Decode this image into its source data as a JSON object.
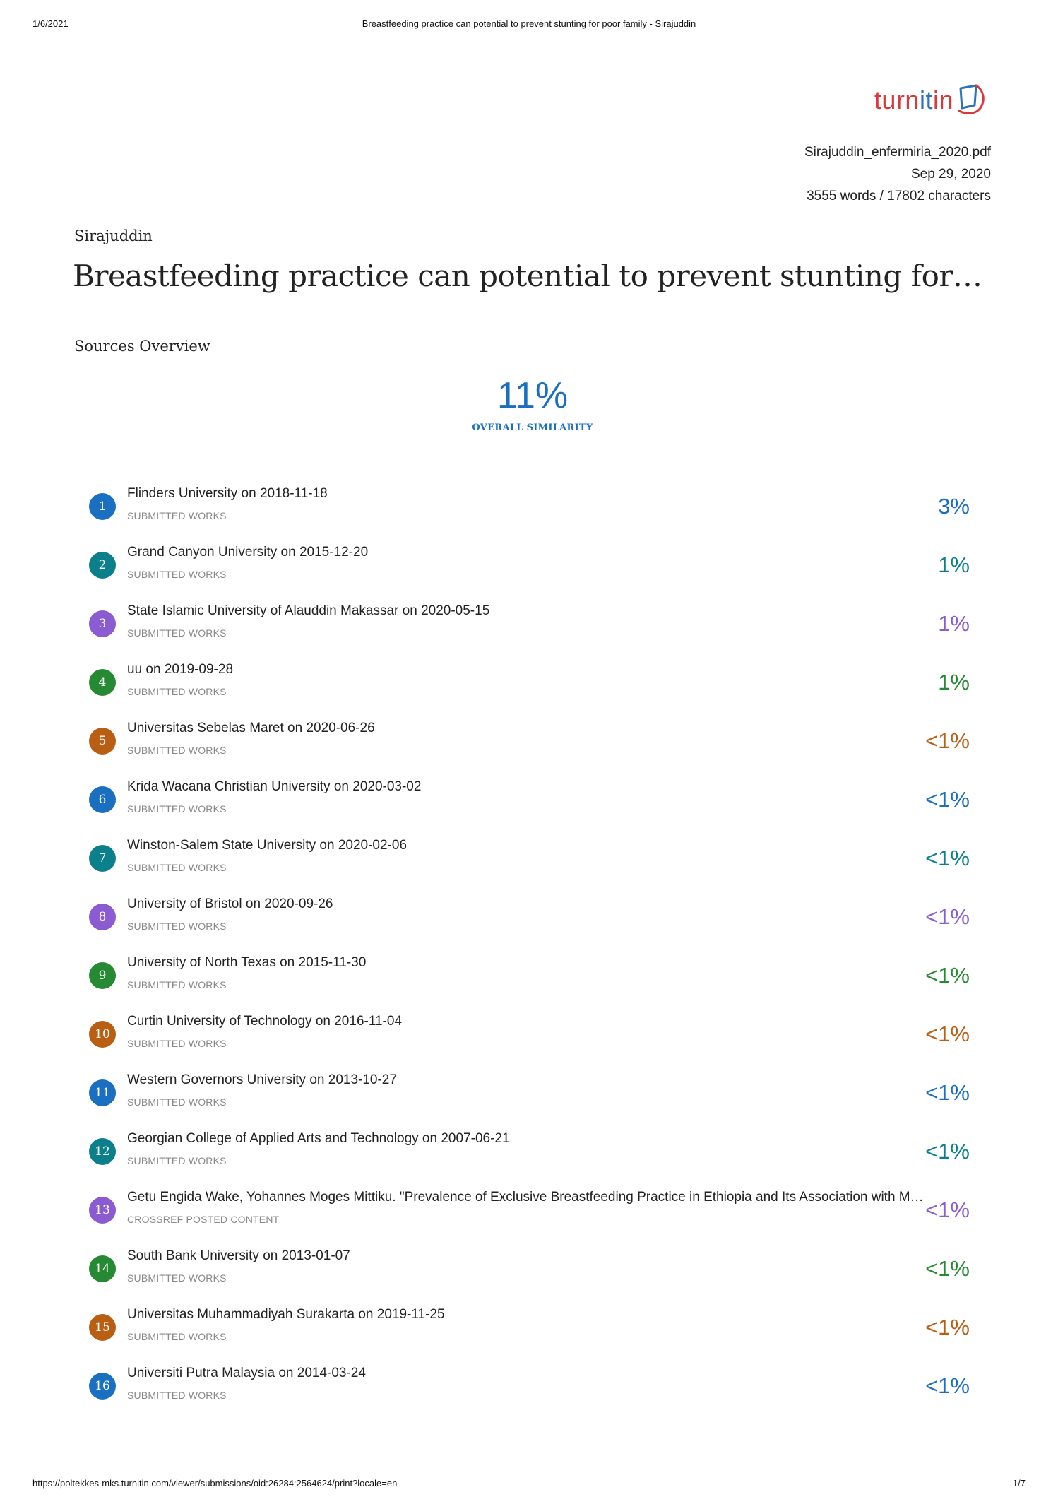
{
  "print_header": {
    "date": "1/6/2021",
    "title": "Breastfeeding practice can potential to prevent stunting for poor family - Sirajuddin"
  },
  "logo": {
    "part1": "turn",
    "part2": "it",
    "part3": "in"
  },
  "meta": {
    "filename": "Sirajuddin_enfermiria_2020.pdf",
    "date": "Sep 29, 2020",
    "counts": "3555 words / 17802 characters"
  },
  "author": "Sirajuddin",
  "doc_title": "Breastfeeding practice can potential to prevent stunting for poor family",
  "section_title": "Sources Overview",
  "overall": {
    "percent": "11%",
    "label": "OVERALL SIMILARITY"
  },
  "sources": [
    {
      "num": "1",
      "title": "Flinders University on 2018-11-18",
      "type": "SUBMITTED WORKS",
      "percent": "3%",
      "color": "#1b6fc1"
    },
    {
      "num": "2",
      "title": "Grand Canyon University on 2015-12-20",
      "type": "SUBMITTED WORKS",
      "percent": "1%",
      "color": "#0c7f8c"
    },
    {
      "num": "3",
      "title": "State Islamic University of Alauddin Makassar on 2020-05-15",
      "type": "SUBMITTED WORKS",
      "percent": "1%",
      "color": "#8a5bd1"
    },
    {
      "num": "4",
      "title": "uu on 2019-09-28",
      "type": "SUBMITTED WORKS",
      "percent": "1%",
      "color": "#258a32"
    },
    {
      "num": "5",
      "title": "Universitas Sebelas Maret on 2020-06-26",
      "type": "SUBMITTED WORKS",
      "percent": "<1%",
      "color": "#b95f14"
    },
    {
      "num": "6",
      "title": "Krida Wacana Christian University on 2020-03-02",
      "type": "SUBMITTED WORKS",
      "percent": "<1%",
      "color": "#1b6fc1"
    },
    {
      "num": "7",
      "title": "Winston-Salem State University on 2020-02-06",
      "type": "SUBMITTED WORKS",
      "percent": "<1%",
      "color": "#0c7f8c"
    },
    {
      "num": "8",
      "title": "University of Bristol on 2020-09-26",
      "type": "SUBMITTED WORKS",
      "percent": "<1%",
      "color": "#8a5bd1"
    },
    {
      "num": "9",
      "title": "University of North Texas on 2015-11-30",
      "type": "SUBMITTED WORKS",
      "percent": "<1%",
      "color": "#258a32"
    },
    {
      "num": "10",
      "title": "Curtin University of Technology on 2016-11-04",
      "type": "SUBMITTED WORKS",
      "percent": "<1%",
      "color": "#b95f14"
    },
    {
      "num": "11",
      "title": "Western Governors University on 2013-10-27",
      "type": "SUBMITTED WORKS",
      "percent": "<1%",
      "color": "#1b6fc1"
    },
    {
      "num": "12",
      "title": "Georgian College of Applied Arts and Technology on 2007-06-21",
      "type": "SUBMITTED WORKS",
      "percent": "<1%",
      "color": "#0c7f8c"
    },
    {
      "num": "13",
      "title": "Getu Engida Wake, Yohannes Moges Mittiku. \"Prevalence of Exclusive Breastfeeding Practice in Ethiopia and Its Association with Mat…",
      "type": "CROSSREF POSTED CONTENT",
      "percent": "<1%",
      "color": "#8a5bd1"
    },
    {
      "num": "14",
      "title": "South Bank University on 2013-01-07",
      "type": "SUBMITTED WORKS",
      "percent": "<1%",
      "color": "#258a32"
    },
    {
      "num": "15",
      "title": "Universitas Muhammadiyah Surakarta on 2019-11-25",
      "type": "SUBMITTED WORKS",
      "percent": "<1%",
      "color": "#b95f14"
    },
    {
      "num": "16",
      "title": "Universiti Putra Malaysia on 2014-03-24",
      "type": "SUBMITTED WORKS",
      "percent": "<1%",
      "color": "#1b6fc1"
    }
  ],
  "print_footer": {
    "url": "https://poltekkes-mks.turnitin.com/viewer/submissions/oid:26284:2564624/print?locale=en",
    "page": "1/7"
  }
}
